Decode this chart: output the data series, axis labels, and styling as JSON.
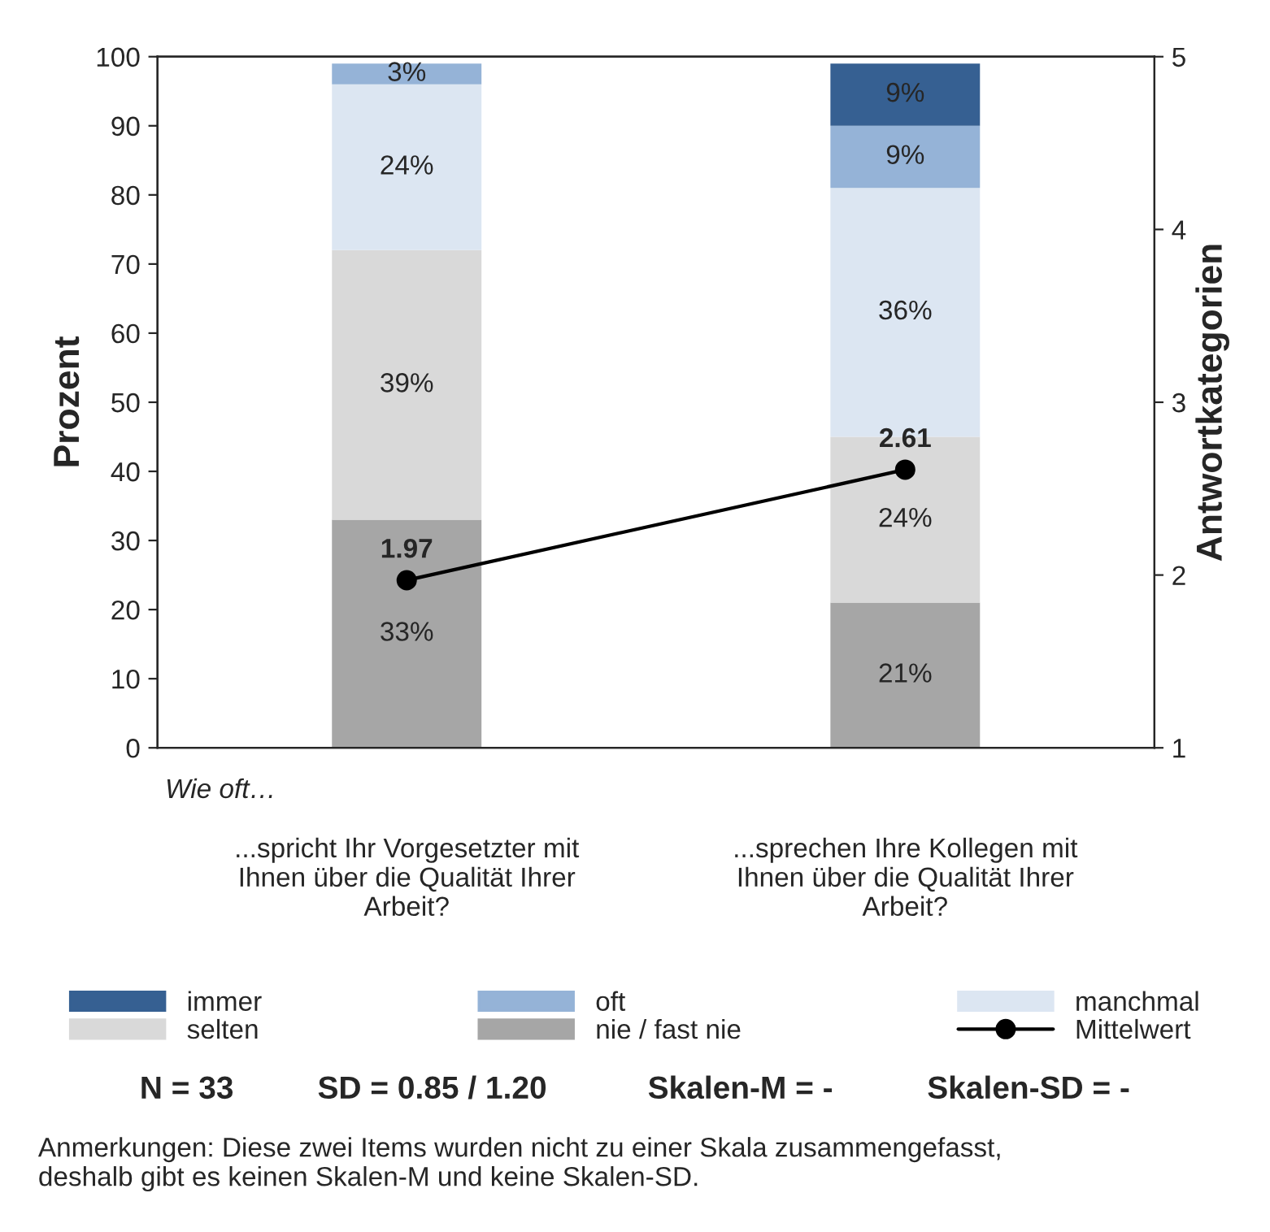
{
  "chart_data": {
    "type": "bar",
    "stacked": true,
    "ylabel": "Prozent",
    "y2label": "Antwortkategorien",
    "categories": [
      "...spricht Ihr Vorgesetzter mit\nIhnen über die Qualität Ihrer\nArbeit?",
      "...sprechen Ihre Kollegen mit\nIhnen über die Qualität Ihrer\nArbeit?"
    ],
    "series": [
      {
        "name": "nie / fast nie",
        "color": "#a6a6a6",
        "values": [
          33,
          21
        ],
        "value_labels": [
          "33%",
          "21%"
        ]
      },
      {
        "name": "selten",
        "color": "#d9d9d9",
        "values": [
          39,
          24
        ],
        "value_labels": [
          "39%",
          "24%"
        ]
      },
      {
        "name": "manchmal",
        "color": "#dce6f2",
        "values": [
          24,
          36
        ],
        "value_labels": [
          "24%",
          "36%"
        ]
      },
      {
        "name": "oft",
        "color": "#95b3d7",
        "values": [
          3,
          9
        ],
        "value_labels": [
          "3%",
          "9%"
        ]
      },
      {
        "name": "immer",
        "color": "#366092",
        "values": [
          null,
          9
        ],
        "value_labels": [
          null,
          "9%"
        ]
      },
      {
        "name": "Mittelwert",
        "type": "line",
        "axis": "y2",
        "color": "#000000",
        "marker": "circle",
        "values": [
          1.97,
          2.61
        ],
        "value_labels": [
          "1.97",
          "2.61"
        ]
      }
    ],
    "ylim": [
      0,
      100
    ],
    "yticks": [
      0,
      10,
      20,
      30,
      40,
      50,
      60,
      70,
      80,
      90,
      100
    ],
    "y2lim": [
      1,
      5
    ],
    "y2ticks": [
      1,
      2,
      3,
      4,
      5
    ],
    "grid": false,
    "legend": "bottom",
    "annotations": [
      "Wie oft…",
      "N = 33",
      "SD = 0.85 / 1.20",
      "Skalen-M = -",
      "Skalen-SD = -",
      "Anmerkungen: Diese zwei Items wurden nicht zu einer Skala zusammengefasst,\ndeshalb gibt es keinen Skalen-M und keine Skalen-SD."
    ]
  }
}
